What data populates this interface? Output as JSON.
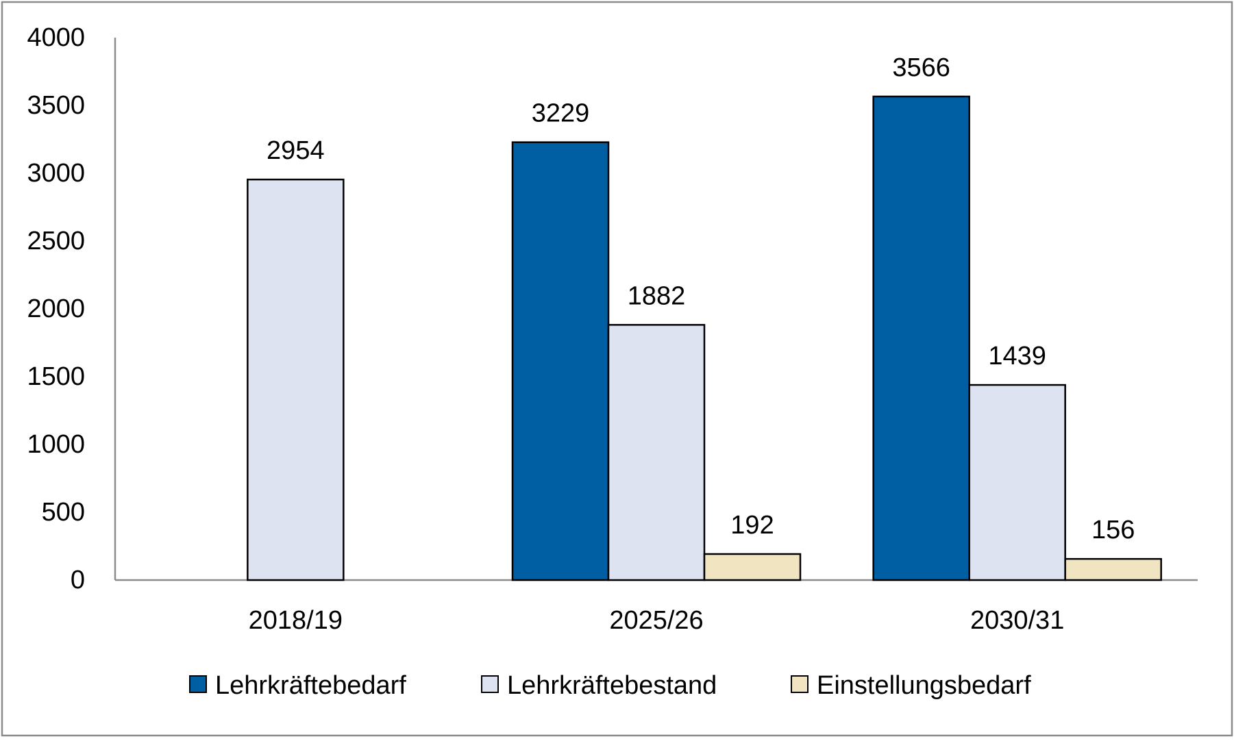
{
  "chart_data": {
    "type": "bar",
    "title": "",
    "xlabel": "",
    "ylabel": "",
    "ylim": [
      0,
      4000
    ],
    "yticks": [
      0,
      500,
      1000,
      1500,
      2000,
      2500,
      3000,
      3500,
      4000
    ],
    "categories": [
      "2018/19",
      "2025/26",
      "2030/31"
    ],
    "series": [
      {
        "name": "Lehrkräftebedarf",
        "color": "#005FA3",
        "values": [
          null,
          3229,
          3566
        ]
      },
      {
        "name": "Lehrkräftebestand",
        "color": "#DDE3F1",
        "values": [
          2954,
          1882,
          1439
        ]
      },
      {
        "name": "Einstellungsbedarf",
        "color": "#F1E4C0",
        "values": [
          null,
          192,
          156
        ]
      }
    ],
    "grid": false,
    "legend": "bottom",
    "data_labels": true
  }
}
